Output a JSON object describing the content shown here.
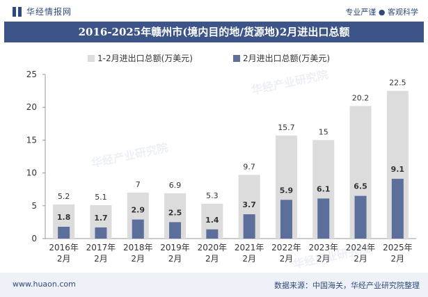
{
  "header": {
    "logo_text": "华经情报网",
    "slogan": "专业严谨 ● 客观科学"
  },
  "footer": {
    "website": "www.huaon.com",
    "source": "数据来源：中国海关，华经产业研究院整理"
  },
  "watermark": "华经产业研究院",
  "colors": {
    "title_bg": "#3c5488",
    "bar_total": "#dcdcdc",
    "bar_month": "#5b6f9a"
  },
  "chart_data": {
    "type": "bar",
    "title": "2016-2025年赣州市(境内目的地/货源地)2月进出口总额",
    "categories": [
      "2016年\n2月",
      "2017年\n2月",
      "2018年\n2月",
      "2019年\n2月",
      "2020年\n2月",
      "2021年\n2月",
      "2022年\n2月",
      "2023年\n2月",
      "2024年\n2月",
      "2025年\n2月"
    ],
    "series": [
      {
        "name": "1-2月进出口总额(万美元)",
        "values": [
          5.2,
          5.1,
          7,
          6.9,
          5.3,
          9.7,
          15.7,
          15,
          20.2,
          22.5
        ]
      },
      {
        "name": "2月进出口总额(万美元)",
        "values": [
          1.8,
          1.7,
          2.9,
          2.5,
          1.4,
          3.7,
          5.9,
          6.1,
          6.5,
          9.1
        ]
      }
    ],
    "ylim": [
      0,
      25
    ],
    "yticks": [
      0,
      5,
      10,
      15,
      20,
      25
    ],
    "grid": false,
    "legend_position": "top"
  }
}
